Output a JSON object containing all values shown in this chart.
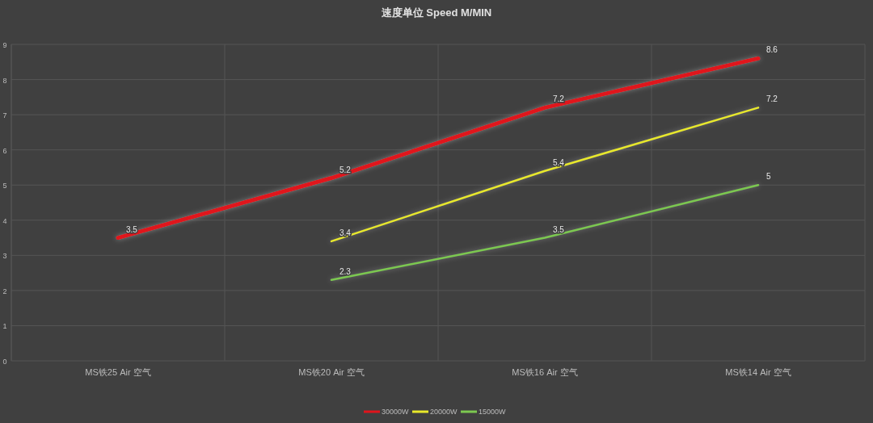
{
  "chart_data": {
    "type": "line",
    "title": "速度单位 Speed M/MIN",
    "categories": [
      "MS铁25  Air 空气",
      "MS铁20  Air 空气",
      "MS铁16  Air 空气",
      "MS铁14 Air 空气"
    ],
    "series": [
      {
        "name": "30000W",
        "color": "#e0141c",
        "values": [
          3.5,
          5.2,
          7.2,
          8.6
        ]
      },
      {
        "name": "20000W",
        "color": "#e8e82a",
        "values": [
          null,
          3.4,
          5.4,
          7.2
        ]
      },
      {
        "name": "15000W",
        "color": "#7cc850",
        "values": [
          null,
          2.3,
          3.5,
          5
        ]
      }
    ],
    "ylim": [
      0,
      9
    ],
    "yticks": [
      0,
      1,
      2,
      3,
      4,
      5,
      6,
      7,
      8,
      9
    ],
    "grid": true,
    "legend": "bottom",
    "data_labels": true,
    "marker": "none",
    "line_style": "solid"
  }
}
